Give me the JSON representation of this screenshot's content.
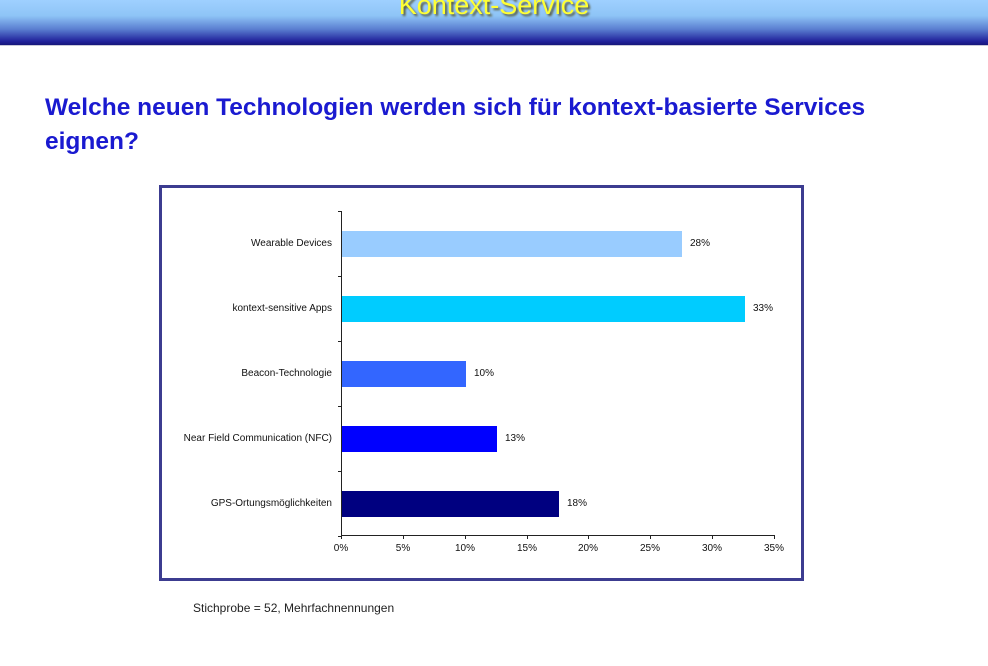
{
  "header": {
    "title": "Kontext-Service"
  },
  "question": "Welche neuen Technologien werden sich für kontext-basierte Services eignen?",
  "footnote": "Stichprobe = 52, Mehrfachnennungen",
  "colors": {
    "header_top": "#9fd0ff",
    "header_bottom": "#15157a",
    "header_title": "#ffff33",
    "question": "#1a1ad0",
    "frame_border": "#3c3c90"
  },
  "chart_data": {
    "type": "bar",
    "orientation": "horizontal",
    "title": "",
    "xlabel": "",
    "ylabel": "",
    "xlim": [
      0,
      35
    ],
    "x_ticks": [
      "0%",
      "5%",
      "10%",
      "15%",
      "20%",
      "25%",
      "30%",
      "35%"
    ],
    "grid": false,
    "legend": null,
    "categories": [
      "Wearable Devices",
      "kontext-sensitive Apps",
      "Beacon-Technologie",
      "Near Field Communication (NFC)",
      "GPS-Ortungsmöglichkeiten"
    ],
    "values": [
      27.5,
      32.6,
      10.0,
      12.5,
      17.5
    ],
    "value_labels": [
      "28%",
      "33%",
      "10%",
      "13%",
      "18%"
    ],
    "bar_colors": [
      "#99ccff",
      "#00ccff",
      "#3366ff",
      "#0000ff",
      "#000080"
    ]
  }
}
